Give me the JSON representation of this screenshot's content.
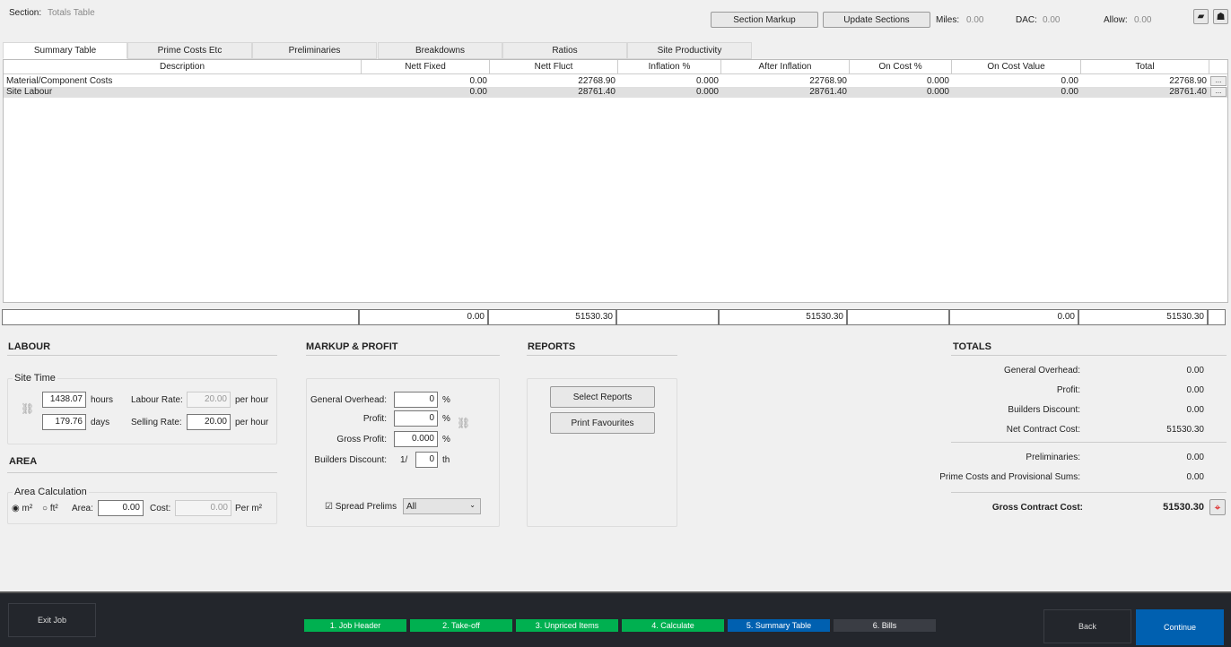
{
  "header": {
    "section_label": "Section:",
    "section_value": "Totals Table",
    "section_markup": "Section Markup",
    "update_sections": "Update Sections",
    "miles_label": "Miles:",
    "miles": "0.00",
    "dac_label": "DAC:",
    "dac": "0.00",
    "allow_label": "Allow:",
    "allow": "0.00",
    "icons": [
      "folder-icon",
      "user-icon"
    ]
  },
  "tabs": [
    "Summary Table",
    "Prime Costs Etc",
    "Preliminaries",
    "Breakdowns",
    "Ratios",
    "Site Productivity"
  ],
  "table": {
    "columns": [
      "Description",
      "Nett Fixed",
      "Nett Fluct",
      "Inflation %",
      "After Inflation",
      "On Cost %",
      "On Cost Value",
      "Total"
    ],
    "rows": [
      [
        "Material/Component Costs",
        "0.00",
        "22768.90",
        "0.000",
        "22768.90",
        "0.000",
        "0.00",
        "22768.90"
      ],
      [
        "Site Labour",
        "0.00",
        "28761.40",
        "0.000",
        "28761.40",
        "0.000",
        "0.00",
        "28761.40"
      ]
    ],
    "row_button": "...",
    "totals": [
      "",
      "0.00",
      "51530.30",
      "",
      "51530.30",
      "",
      "0.00",
      "51530.30"
    ]
  },
  "labour": {
    "title": "LABOUR",
    "group": "Site Time",
    "hours": "1438.07",
    "hours_unit": "hours",
    "days": "179.76",
    "days_unit": "days",
    "labour_rate_label": "Labour Rate:",
    "labour_rate": "20.00",
    "selling_rate_label": "Selling Rate:",
    "selling_rate": "20.00",
    "per_hour": "per hour"
  },
  "area": {
    "title": "AREA",
    "group": "Area Calculation",
    "m2": "m²",
    "ft2": "ft²",
    "unit_selected": "m²",
    "area_label": "Area:",
    "area": "0.00",
    "cost_label": "Cost:",
    "cost": "0.00",
    "per": "Per m²"
  },
  "markup": {
    "title": "MARKUP & PROFIT",
    "overhead_label": "General Overhead:",
    "overhead": "0",
    "profit_label": "Profit:",
    "profit": "0",
    "gross_label": "Gross Profit:",
    "gross": "0.000",
    "pct": "%",
    "discount_label": "Builders Discount:",
    "discount_prefix": "1/",
    "discount": "0",
    "discount_suffix": "th",
    "spread_label": "Spread Prelims",
    "spread_checked": true,
    "spread_select": "All"
  },
  "reports": {
    "title": "REPORTS",
    "select": "Select Reports",
    "print": "Print Favourites"
  },
  "totals": {
    "title": "TOTALS",
    "items": [
      [
        "General Overhead:",
        "0.00"
      ],
      [
        "Profit:",
        "0.00"
      ],
      [
        "Builders Discount:",
        "0.00"
      ],
      [
        "Net Contract Cost:",
        "51530.30"
      ],
      [
        "Preliminaries:",
        "0.00"
      ],
      [
        "Prime Costs and Provisional Sums:",
        "0.00"
      ]
    ],
    "gross_label": "Gross Contract Cost:",
    "gross": "51530.30"
  },
  "footer": {
    "exit": "Exit Job",
    "steps": [
      "1. Job Header",
      "2. Take-off",
      "3. Unpriced Items",
      "4. Calculate",
      "5. Summary Table",
      "6. Bills"
    ],
    "back": "Back",
    "continue": "Continue",
    "colors": {
      "done": "#00b050",
      "active": "#0060b0",
      "pending": "#3a3d44"
    }
  }
}
